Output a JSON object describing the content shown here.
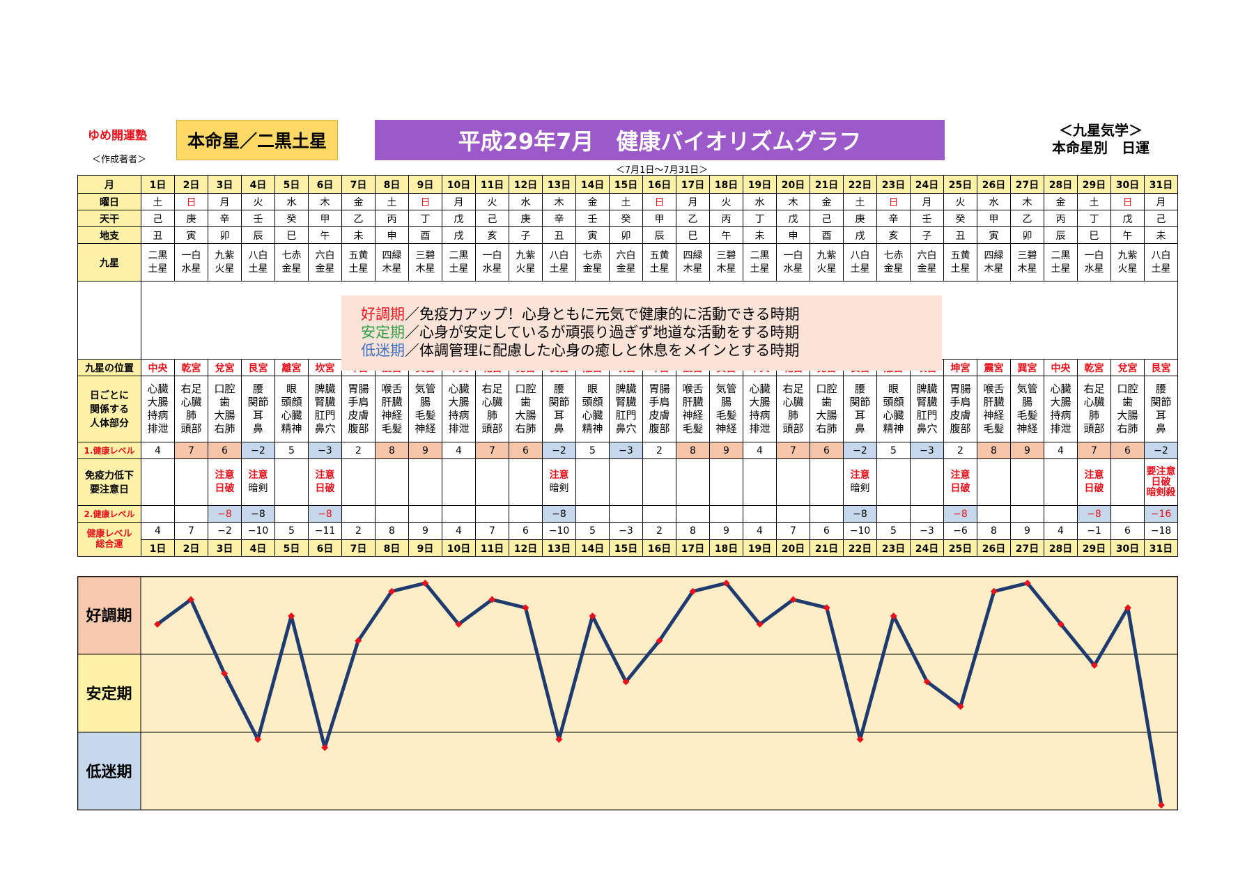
{
  "brand": "ゆめ開運塾",
  "author": "＜作成著者＞",
  "honmei": "本命星／二黒土星",
  "title": "平成29年7月　健康バイオリズムグラフ",
  "subtitle": "＜7月1日～7月31日＞",
  "kyusei_line1": "＜九星気学＞",
  "kyusei_line2": "本命星別　日運",
  "row_labels": {
    "month": "月",
    "weekday": "曜日",
    "tenkan": "天干",
    "chishi": "地支",
    "kyusei": "九星",
    "position": "九星の位置",
    "body": "日ごとに\n関係する\n人体部分",
    "level1": "1.健康レベル",
    "immune": "免疫力低下\n要注意日",
    "level2": "2.健康レベル",
    "total": "健康レベル\n総合運"
  },
  "days": [
    "1日",
    "2日",
    "3日",
    "4日",
    "5日",
    "6日",
    "7日",
    "8日",
    "9日",
    "10日",
    "11日",
    "12日",
    "13日",
    "14日",
    "15日",
    "16日",
    "17日",
    "18日",
    "19日",
    "20日",
    "21日",
    "22日",
    "23日",
    "24日",
    "25日",
    "26日",
    "27日",
    "28日",
    "29日",
    "30日",
    "31日"
  ],
  "weekdays": [
    "土",
    "日",
    "月",
    "火",
    "水",
    "木",
    "金",
    "土",
    "日",
    "月",
    "火",
    "水",
    "木",
    "金",
    "土",
    "日",
    "月",
    "火",
    "水",
    "木",
    "金",
    "土",
    "日",
    "月",
    "火",
    "水",
    "木",
    "金",
    "土",
    "日",
    "月"
  ],
  "tenkan": [
    "己",
    "庚",
    "辛",
    "壬",
    "癸",
    "甲",
    "乙",
    "丙",
    "丁",
    "戊",
    "己",
    "庚",
    "辛",
    "壬",
    "癸",
    "甲",
    "乙",
    "丙",
    "丁",
    "戊",
    "己",
    "庚",
    "辛",
    "壬",
    "癸",
    "甲",
    "乙",
    "丙",
    "丁",
    "戊",
    "己"
  ],
  "chishi": [
    "丑",
    "寅",
    "卯",
    "辰",
    "巳",
    "午",
    "未",
    "申",
    "酉",
    "戌",
    "亥",
    "子",
    "丑",
    "寅",
    "卯",
    "辰",
    "巳",
    "午",
    "未",
    "申",
    "酉",
    "戌",
    "亥",
    "子",
    "丑",
    "寅",
    "卯",
    "辰",
    "巳",
    "午",
    "未"
  ],
  "kyusei": [
    [
      "二黒",
      "土星"
    ],
    [
      "一白",
      "水星"
    ],
    [
      "九紫",
      "火星"
    ],
    [
      "八白",
      "土星"
    ],
    [
      "七赤",
      "金星"
    ],
    [
      "六白",
      "金星"
    ],
    [
      "五黄",
      "土星"
    ],
    [
      "四緑",
      "木星"
    ],
    [
      "三碧",
      "木星"
    ],
    [
      "二黒",
      "土星"
    ],
    [
      "一白",
      "水星"
    ],
    [
      "九紫",
      "火星"
    ],
    [
      "八白",
      "土星"
    ],
    [
      "七赤",
      "金星"
    ],
    [
      "六白",
      "金星"
    ],
    [
      "五黄",
      "土星"
    ],
    [
      "四緑",
      "木星"
    ],
    [
      "三碧",
      "木星"
    ],
    [
      "二黒",
      "土星"
    ],
    [
      "一白",
      "水星"
    ],
    [
      "九紫",
      "火星"
    ],
    [
      "八白",
      "土星"
    ],
    [
      "七赤",
      "金星"
    ],
    [
      "六白",
      "金星"
    ],
    [
      "五黄",
      "土星"
    ],
    [
      "四緑",
      "木星"
    ],
    [
      "三碧",
      "木星"
    ],
    [
      "二黒",
      "土星"
    ],
    [
      "一白",
      "水星"
    ],
    [
      "九紫",
      "火星"
    ],
    [
      "八白",
      "土星"
    ]
  ],
  "legend": [
    {
      "term": "好調期",
      "text": "／免疫力アップ！心身ともに元気で健康的に活動できる時期"
    },
    {
      "term": "安定期",
      "text": "／心身が安定しているが頑張り過ぎず地道な活動をする時期"
    },
    {
      "term": "低迷期",
      "text": "／体調管理に配慮した心身の癒しと休息をメインとする時期"
    }
  ],
  "positions": [
    "中央",
    "乾宮",
    "兌宮",
    "艮宮",
    "離宮",
    "坎宮",
    "坤宮",
    "震宮",
    "巽宮",
    "中央",
    "乾宮",
    "兌宮",
    "艮宮",
    "離宮",
    "坎宮",
    "坤宮",
    "震宮",
    "巽宮",
    "中央",
    "乾宮",
    "兌宮",
    "艮宮",
    "離宮",
    "坎宮",
    "坤宮",
    "震宮",
    "巽宮",
    "中央",
    "乾宮",
    "兌宮",
    "艮宮"
  ],
  "body_parts": [
    [
      "心臓",
      "大腸",
      "持病",
      "排泄"
    ],
    [
      "右足",
      "心臓",
      "肺",
      "頭部"
    ],
    [
      "口腔",
      "歯",
      "大腸",
      "右肺"
    ],
    [
      "腰",
      "関節",
      "耳",
      "鼻"
    ],
    [
      "眼",
      "頭顔",
      "心臓",
      "精神"
    ],
    [
      "脾臓",
      "腎臓",
      "肛門",
      "鼻穴"
    ],
    [
      "胃腸",
      "手肩",
      "皮膚",
      "腹部"
    ],
    [
      "喉舌",
      "肝臓",
      "神経",
      "毛髪"
    ],
    [
      "気管",
      "腸",
      "毛髪",
      "神経"
    ],
    [
      "心臓",
      "大腸",
      "持病",
      "排泄"
    ],
    [
      "右足",
      "心臓",
      "肺",
      "頭部"
    ],
    [
      "口腔",
      "歯",
      "大腸",
      "右肺"
    ],
    [
      "腰",
      "関節",
      "耳",
      "鼻"
    ],
    [
      "眼",
      "頭顔",
      "心臓",
      "精神"
    ],
    [
      "脾臓",
      "腎臓",
      "肛門",
      "鼻穴"
    ],
    [
      "胃腸",
      "手肩",
      "皮膚",
      "腹部"
    ],
    [
      "喉舌",
      "肝臓",
      "神経",
      "毛髪"
    ],
    [
      "気管",
      "腸",
      "毛髪",
      "神経"
    ],
    [
      "心臓",
      "大腸",
      "持病",
      "排泄"
    ],
    [
      "右足",
      "心臓",
      "肺",
      "頭部"
    ],
    [
      "口腔",
      "歯",
      "大腸",
      "右肺"
    ],
    [
      "腰",
      "関節",
      "耳",
      "鼻"
    ],
    [
      "眼",
      "頭顔",
      "心臓",
      "精神"
    ],
    [
      "脾臓",
      "腎臓",
      "肛門",
      "鼻穴"
    ],
    [
      "胃腸",
      "手肩",
      "皮膚",
      "腹部"
    ],
    [
      "喉舌",
      "肝臓",
      "神経",
      "毛髪"
    ],
    [
      "気管",
      "腸",
      "毛髪",
      "神経"
    ],
    [
      "心臓",
      "大腸",
      "持病",
      "排泄"
    ],
    [
      "右足",
      "心臓",
      "肺",
      "頭部"
    ],
    [
      "口腔",
      "歯",
      "大腸",
      "右肺"
    ],
    [
      "腰",
      "関節",
      "耳",
      "鼻"
    ]
  ],
  "level1": [
    "4",
    "7",
    "6",
    "−2",
    "5",
    "−3",
    "2",
    "8",
    "9",
    "4",
    "7",
    "6",
    "−2",
    "5",
    "−3",
    "2",
    "8",
    "9",
    "4",
    "7",
    "6",
    "−2",
    "5",
    "−3",
    "2",
    "8",
    "9",
    "4",
    "7",
    "6",
    "−2"
  ],
  "immune": [
    [],
    [],
    [
      "注意",
      "日破"
    ],
    [
      "注意",
      "暗剣"
    ],
    [],
    [
      "注意",
      "日破"
    ],
    [],
    [],
    [],
    [],
    [],
    [],
    [
      "注意",
      "暗剣"
    ],
    [],
    [],
    [],
    [],
    [],
    [],
    [],
    [],
    [
      "注意",
      "暗剣"
    ],
    [],
    [],
    [
      "注意",
      "日破"
    ],
    [],
    [],
    [],
    [
      "注意",
      "日破"
    ],
    [],
    [
      "要注意",
      "日破",
      "暗剣殺"
    ]
  ],
  "level2": [
    "",
    "",
    "−8",
    "−8",
    "",
    "−8",
    "",
    "",
    "",
    "",
    "",
    "",
    "−8",
    "",
    "",
    "",
    "",
    "",
    "",
    "",
    "",
    "−8",
    "",
    "",
    "−8",
    "",
    "",
    "",
    "−8",
    "",
    "−16"
  ],
  "total": [
    "4",
    "7",
    "−2",
    "−10",
    "5",
    "−11",
    "2",
    "8",
    "9",
    "4",
    "7",
    "6",
    "−10",
    "5",
    "−3",
    "2",
    "8",
    "9",
    "4",
    "7",
    "6",
    "−10",
    "5",
    "−3",
    "−6",
    "8",
    "9",
    "4",
    "−1",
    "6",
    "−18"
  ],
  "chart_labels": [
    "好調期",
    "安定期",
    "低迷期"
  ],
  "chart_data": {
    "type": "line",
    "title": "平成29年7月　健康バイオリズムグラフ",
    "x": [
      "1日",
      "2日",
      "3日",
      "4日",
      "5日",
      "6日",
      "7日",
      "8日",
      "9日",
      "10日",
      "11日",
      "12日",
      "13日",
      "14日",
      "15日",
      "16日",
      "17日",
      "18日",
      "19日",
      "20日",
      "21日",
      "22日",
      "23日",
      "24日",
      "25日",
      "26日",
      "27日",
      "28日",
      "29日",
      "30日",
      "31日"
    ],
    "series": [
      {
        "values": [
          4,
          7,
          -2,
          -10,
          5,
          -11,
          2,
          8,
          9,
          4,
          7,
          6,
          -10,
          5,
          -3,
          2,
          8,
          9,
          4,
          7,
          6,
          -10,
          5,
          -3,
          -6,
          8,
          9,
          4,
          -1,
          6,
          -18
        ]
      }
    ],
    "bands": [
      "好調期",
      "安定期",
      "低迷期"
    ],
    "colors": {
      "line": "#1f3a6e",
      "marker": "#e8101a",
      "band_good": "#f7c9ae",
      "band_stable": "#fff2a8",
      "band_low": "#c6d8ec",
      "plot_bg": "#fdeec8"
    }
  }
}
